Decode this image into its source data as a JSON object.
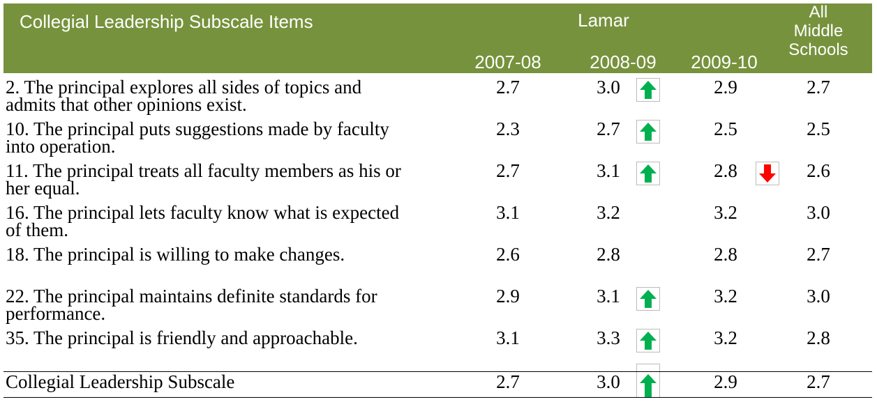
{
  "header": {
    "title": "Collegial Leadership Subscale Items",
    "group": "Lamar",
    "years": [
      "2007-08",
      "2008-09",
      "2009-10"
    ],
    "all": "All Middle Schools"
  },
  "rows": [
    {
      "item": "2. The principal explores all sides of topics and admits that other opinions exist.",
      "values": [
        "2.7",
        "3.0",
        "2.9",
        "2.7"
      ]
    },
    {
      "item": "10. The principal puts suggestions made by faculty into operation.",
      "values": [
        "2.3",
        "2.7",
        "2.5",
        "2.5"
      ]
    },
    {
      "item": "11. The principal treats all faculty members as his or her equal.",
      "values": [
        "2.7",
        "3.1",
        "2.8",
        "2.6"
      ]
    },
    {
      "item": "16. The principal lets faculty know what is expected of them.",
      "values": [
        "3.1",
        "3.2",
        "3.2",
        "3.0"
      ]
    },
    {
      "item": "18. The principal is willing to make changes.",
      "values": [
        "2.6",
        "2.8",
        "2.8",
        "2.7"
      ]
    },
    {
      "item": "22. The principal maintains definite standards for performance.",
      "values": [
        "2.9",
        "3.1",
        "3.2",
        "3.0"
      ]
    },
    {
      "item": "35. The principal is friendly and approachable.",
      "values": [
        "3.1",
        "3.3",
        "3.2",
        "2.8"
      ]
    }
  ],
  "summary": {
    "item": "Collegial Leadership Subscale",
    "values": [
      "2.7",
      "3.0",
      "2.9",
      "2.7"
    ]
  }
}
